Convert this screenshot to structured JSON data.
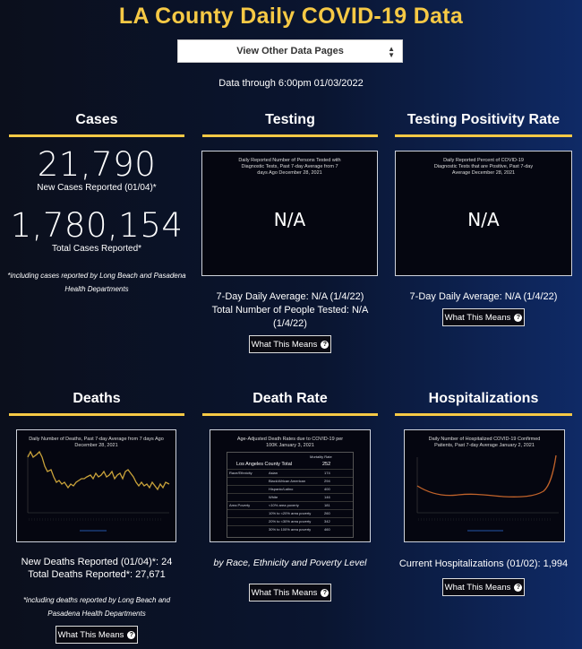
{
  "page": {
    "title": "LA County Daily COVID-19 Data",
    "select_label": "View Other Data Pages",
    "data_through": "Data through 6:00pm 01/03/2022"
  },
  "cases": {
    "title": "Cases",
    "new_value": "21,790",
    "new_label": "New Cases Reported (01/04)*",
    "total_value": "1,780,154",
    "total_label": "Total Cases Reported*",
    "note": "*including cases reported by Long Beach and Pasadena Health Departments"
  },
  "testing": {
    "title": "Testing",
    "panel_caption": "Daily Reported Number of Persons Tested with Diagnostic Tests, Past 7-day Average from 7 days Ago December 28, 2021",
    "panel_value": "N/A",
    "stat1": "7-Day Daily Average: N/A (1/4/22)",
    "stat2": "Total Number of People Tested: N/A (1/4/22)",
    "button": "What This Means"
  },
  "positivity": {
    "title": "Testing Positivity Rate",
    "panel_caption": "Daily Reported Percent of COVID-19 Diagnostic Tests that are Positive, Past 7-day Average December 28, 2021",
    "panel_value": "N/A",
    "stat1": "7-Day Daily Average: N/A (1/4/22)",
    "button": "What This Means"
  },
  "deaths": {
    "title": "Deaths",
    "panel_caption": "Daily Number of Deaths, Past 7-day Average from 7 days Ago December 28, 2021",
    "stat1": "New Deaths Reported (01/04)*: 24",
    "stat2": "Total Deaths Reported*: 27,671",
    "note": "*including deaths reported by Long Beach and Pasadena Health Departments",
    "button": "What This Means",
    "line_color": "#c9a23a"
  },
  "death_rate": {
    "title": "Death Rate",
    "panel_caption": "Age-Adjusted Death Rates due to COVID-19 per 100K January 3, 2021",
    "table_header": "Mortality Rate",
    "total_label": "Los Angeles County Total",
    "total_value": "252",
    "rows": [
      {
        "group": "Race/Ethnicity",
        "label": "Asian",
        "value": "174"
      },
      {
        "group": "",
        "label": "Black/African American",
        "value": "294"
      },
      {
        "group": "",
        "label": "Hispanic/Latino",
        "value": "400"
      },
      {
        "group": "",
        "label": "White",
        "value": "146"
      },
      {
        "group": "Area Poverty",
        "label": "<10% area poverty",
        "value": "181"
      },
      {
        "group": "",
        "label": "10% to <20% area poverty",
        "value": "260"
      },
      {
        "group": "",
        "label": "20% to <30% area poverty",
        "value": "342"
      },
      {
        "group": "",
        "label": "30% to 100% area poverty",
        "value": "460"
      }
    ],
    "subtitle": "by Race, Ethnicity and Poverty Level",
    "button": "What This Means"
  },
  "hospitalizations": {
    "title": "Hospitalizations",
    "panel_caption": "Daily Number of Hospitalized COVID-19 Confirmed Patients, Past 7-day Average January 2, 2021",
    "stat1": "Current Hospitalizations (01/02): 1,994",
    "button": "What This Means",
    "line_color": "#c0622a"
  }
}
